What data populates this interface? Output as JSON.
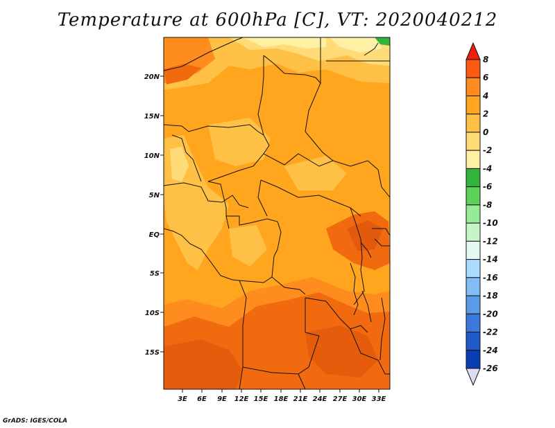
{
  "title": "Temperature at 600hPa [C], VT: 2020040212",
  "credit": "GrADS: IGES/COLA",
  "axes": {
    "y_ticks": [
      "20N",
      "15N",
      "10N",
      "5N",
      "EQ",
      "5S",
      "10S",
      "15S"
    ],
    "x_ticks": [
      "3E",
      "6E",
      "9E",
      "12E",
      "15E",
      "18E",
      "21E",
      "24E",
      "27E",
      "30E",
      "33E"
    ]
  },
  "colorbar": {
    "levels": [
      "8",
      "6",
      "4",
      "2",
      "0",
      "-2",
      "-4",
      "-6",
      "-8",
      "-10",
      "-12",
      "-14",
      "-16",
      "-18",
      "-20",
      "-22",
      "-24",
      "-26"
    ],
    "colors": [
      "#f01e0a",
      "#ff5a14",
      "#ff8c1e",
      "#ffa51e",
      "#ffc046",
      "#ffdc78",
      "#fff0a5",
      "#32b43c",
      "#5ad25a",
      "#96ec96",
      "#c8f5c8",
      "#e6f8f4",
      "#aadcff",
      "#82bef5",
      "#5a9ae6",
      "#3c78dc",
      "#1e5ac8",
      "#0a3cb4",
      "#0a1e8c"
    ]
  },
  "field_colors": {
    "lightest": "#fff0a5",
    "light": "#ffdc78",
    "mid_light": "#ffc046",
    "mid": "#ffa51e",
    "warm": "#ff8c1e",
    "hot": "#f26a10",
    "green": "#32b43c"
  }
}
